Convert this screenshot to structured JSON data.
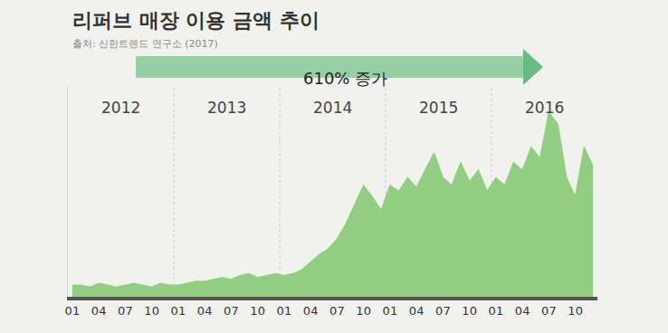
{
  "chart_data": {
    "type": "area",
    "title": "리퍼브 매장 이용 금액 추이",
    "subtitle": "출처: 신한트렌드 연구소 (2017)",
    "annotations": [
      "610% 증가"
    ],
    "year_labels": [
      "2012",
      "2013",
      "2014",
      "2015",
      "2016"
    ],
    "categories": [
      "01",
      null,
      null,
      "04",
      null,
      null,
      "07",
      null,
      null,
      "10",
      null,
      null,
      "01",
      null,
      null,
      "04",
      null,
      null,
      "07",
      null,
      null,
      "10",
      null,
      null,
      "01",
      null,
      null,
      "04",
      null,
      null,
      "07",
      null,
      null,
      "10",
      null,
      null,
      "01",
      null,
      null,
      "04",
      null,
      null,
      "07",
      null,
      null,
      "10",
      null,
      null,
      "01",
      null,
      null,
      "04",
      null,
      null,
      "07",
      null,
      null,
      "10",
      null,
      null
    ],
    "values": [
      6,
      6,
      5,
      7,
      6,
      5,
      6,
      7,
      6,
      5,
      7,
      6,
      6,
      7,
      8,
      8,
      9,
      10,
      9,
      11,
      12,
      10,
      11,
      12,
      11,
      12,
      14,
      18,
      22,
      25,
      30,
      38,
      48,
      58,
      52,
      45,
      58,
      55,
      62,
      57,
      66,
      75,
      62,
      58,
      70,
      60,
      66,
      55,
      62,
      58,
      70,
      66,
      78,
      72,
      96,
      90,
      62,
      52,
      78,
      68
    ],
    "color": "#93cc83",
    "ylim": [
      0,
      110
    ],
    "yticks": [],
    "grid": false,
    "tick_labels": "x"
  }
}
